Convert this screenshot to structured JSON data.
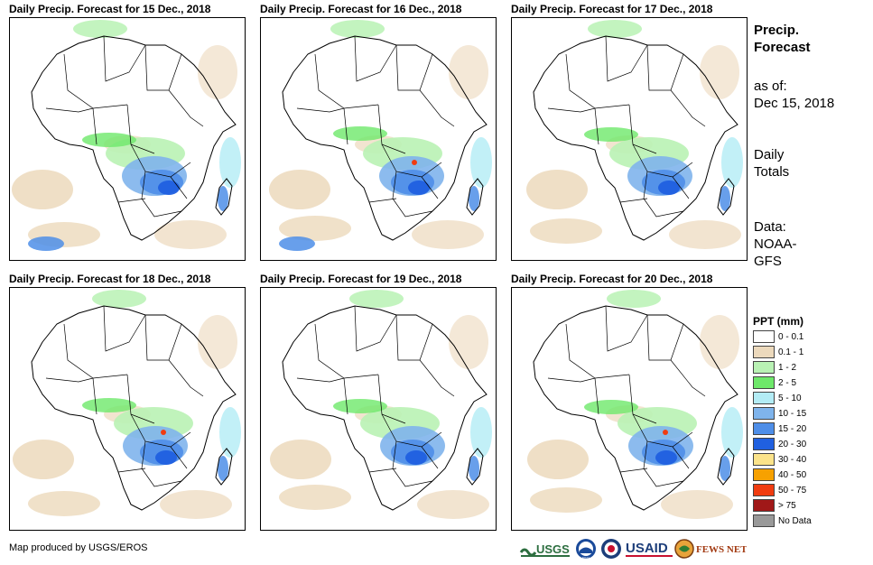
{
  "panels": [
    {
      "title": "Daily Precip. Forecast for 15 Dec., 2018"
    },
    {
      "title": "Daily Precip. Forecast for 16 Dec., 2018"
    },
    {
      "title": "Daily Precip. Forecast for 17 Dec., 2018"
    },
    {
      "title": "Daily Precip. Forecast for 18 Dec., 2018"
    },
    {
      "title": "Daily Precip. Forecast for 19 Dec., 2018"
    },
    {
      "title": "Daily Precip. Forecast for 20 Dec., 2018"
    }
  ],
  "sidebar": {
    "heading_line1": "Precip.",
    "heading_line2": "Forecast",
    "asof_line1": "as of:",
    "asof_line2": "Dec 15, 2018",
    "totals_line1": "Daily",
    "totals_line2": "Totals",
    "data_line1": "Data:",
    "data_line2": "NOAA-",
    "data_line3": "GFS"
  },
  "legend": {
    "title": "PPT (mm)",
    "items": [
      {
        "label": "0 - 0.1",
        "color": "#ffffff"
      },
      {
        "label": "0.1 - 1",
        "color": "#ecd9bc"
      },
      {
        "label": "1 - 2",
        "color": "#b9f2b4"
      },
      {
        "label": "2 - 5",
        "color": "#6ee86a"
      },
      {
        "label": "5 - 10",
        "color": "#b3ecf5"
      },
      {
        "label": "10 - 15",
        "color": "#7fb4ec"
      },
      {
        "label": "15 - 20",
        "color": "#4e8ee8"
      },
      {
        "label": "20 - 30",
        "color": "#2060e0"
      },
      {
        "label": "30 - 40",
        "color": "#fbe38a"
      },
      {
        "label": "40 - 50",
        "color": "#f7a100"
      },
      {
        "label": "50 - 75",
        "color": "#f03c10"
      },
      {
        "label": "> 75",
        "color": "#a01818"
      },
      {
        "label": "No Data",
        "color": "#999999"
      }
    ]
  },
  "credit": "Map produced by USGS/EROS",
  "logos": {
    "usgs": "USGS",
    "noaa": "NOAA",
    "usaid": "USAID",
    "fewsnet": "FEWS NET"
  }
}
